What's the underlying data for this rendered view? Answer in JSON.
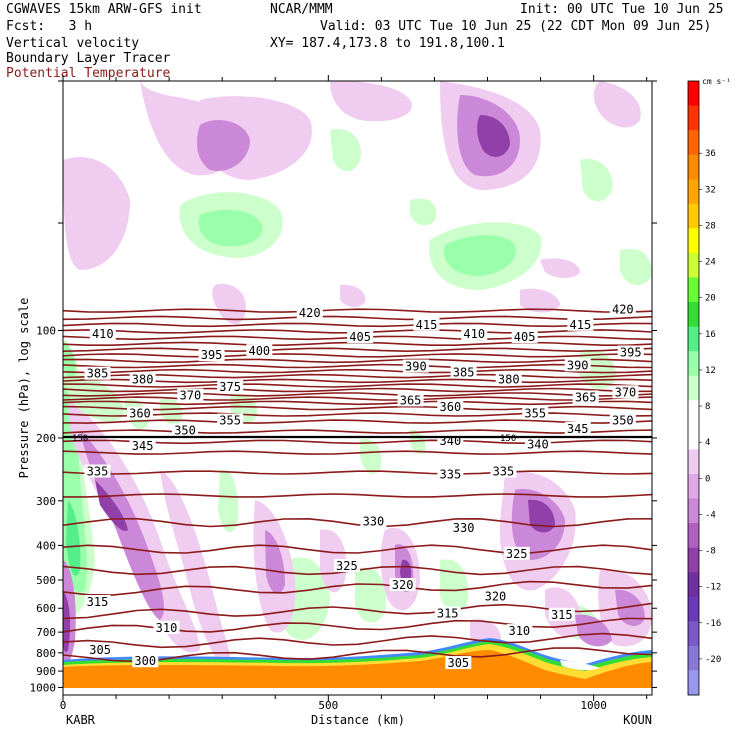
{
  "header": {
    "model": "CGWAVES 15km ARW-GFS init",
    "center": "NCAR/MMM",
    "init": "Init: 00 UTC Tue 10 Jun 25",
    "fcst": "Fcst:   3 h",
    "valid": "Valid: 03 UTC Tue 10 Jun 25 (22 CDT Mon 09 Jun 25)",
    "field1": "Vertical velocity",
    "xy": "XY= 187.4,173.8 to 191.8,100.1",
    "field2": "Boundary Layer Tracer",
    "field3": "Potential Temperature"
  },
  "colors": {
    "theta_contour": "#8b1a1a",
    "title_red": "#8b1a1a",
    "plume_orange": "#ff8c00"
  },
  "chart_data": {
    "type": "cross-section",
    "xlabel": "Distance (km)",
    "ylabel": "Pressure (hPa), log scale",
    "xlim": [
      0,
      1110
    ],
    "ylim": [
      1050,
      20
    ],
    "y_scale": "log",
    "x_ticks": [
      "0",
      "500",
      "1000"
    ],
    "x_tick_values": [
      0,
      500,
      1000
    ],
    "y_ticks": [
      "100",
      "200",
      "300",
      "400",
      "500",
      "600",
      "700",
      "800",
      "900",
      "1000"
    ],
    "y_tick_values": [
      100,
      200,
      300,
      400,
      500,
      600,
      700,
      800,
      900,
      1000
    ],
    "left_endpoint": "KABR",
    "right_endpoint": "KOUN",
    "colorbar": {
      "units": "cm s⁻¹",
      "labels": [
        "36",
        "32",
        "28",
        "24",
        "20",
        "16",
        "12",
        "8",
        "4",
        "0",
        "-4",
        "-8",
        "-12",
        "-16",
        "-20"
      ],
      "colors": [
        "#ff0000",
        "#ff3300",
        "#ff6600",
        "#ff8c00",
        "#ffa500",
        "#ffcc00",
        "#ffff00",
        "#ccff33",
        "#66ff33",
        "#33dd33",
        "#55ee88",
        "#99ffaa",
        "#ccffcc",
        "#ffffff",
        "#ffffff",
        "#f0ccf0",
        "#e0a8e8",
        "#cc88d8",
        "#b060c0",
        "#9040a8",
        "#7030a0",
        "#6a3ab8",
        "#7a5ac8",
        "#8a78d8",
        "#9a98ee"
      ]
    },
    "tropopause_label": "150",
    "theta_labels": [
      {
        "text": "410",
        "x": 75,
        "p": 103
      },
      {
        "text": "420",
        "x": 465,
        "p": 90
      },
      {
        "text": "405",
        "x": 560,
        "p": 105
      },
      {
        "text": "415",
        "x": 685,
        "p": 97
      },
      {
        "text": "410",
        "x": 775,
        "p": 103
      },
      {
        "text": "405",
        "x": 870,
        "p": 105
      },
      {
        "text": "415",
        "x": 975,
        "p": 97
      },
      {
        "text": "420",
        "x": 1055,
        "p": 88
      },
      {
        "text": "385",
        "x": 65,
        "p": 133
      },
      {
        "text": "395",
        "x": 280,
        "p": 118
      },
      {
        "text": "400",
        "x": 370,
        "p": 115
      },
      {
        "text": "390",
        "x": 665,
        "p": 127
      },
      {
        "text": "385",
        "x": 755,
        "p": 132
      },
      {
        "text": "380",
        "x": 840,
        "p": 138
      },
      {
        "text": "390",
        "x": 970,
        "p": 126
      },
      {
        "text": "395",
        "x": 1070,
        "p": 116
      },
      {
        "text": "380",
        "x": 150,
        "p": 138
      },
      {
        "text": "370",
        "x": 240,
        "p": 153
      },
      {
        "text": "375",
        "x": 315,
        "p": 145
      },
      {
        "text": "365",
        "x": 655,
        "p": 158
      },
      {
        "text": "365",
        "x": 985,
        "p": 155
      },
      {
        "text": "370",
        "x": 1060,
        "p": 150
      },
      {
        "text": "360",
        "x": 145,
        "p": 172
      },
      {
        "text": "355",
        "x": 315,
        "p": 180
      },
      {
        "text": "360",
        "x": 730,
        "p": 165
      },
      {
        "text": "355",
        "x": 890,
        "p": 172
      },
      {
        "text": "350",
        "x": 1055,
        "p": 180
      },
      {
        "text": "350",
        "x": 230,
        "p": 192
      },
      {
        "text": "345",
        "x": 150,
        "p": 212
      },
      {
        "text": "340",
        "x": 730,
        "p": 205
      },
      {
        "text": "340",
        "x": 895,
        "p": 210
      },
      {
        "text": "345",
        "x": 970,
        "p": 190
      },
      {
        "text": "335",
        "x": 65,
        "p": 250
      },
      {
        "text": "335",
        "x": 730,
        "p": 255
      },
      {
        "text": "335",
        "x": 830,
        "p": 250
      },
      {
        "text": "330",
        "x": 585,
        "p": 345
      },
      {
        "text": "330",
        "x": 755,
        "p": 360
      },
      {
        "text": "325",
        "x": 535,
        "p": 460
      },
      {
        "text": "325",
        "x": 855,
        "p": 425
      },
      {
        "text": "320",
        "x": 640,
        "p": 520
      },
      {
        "text": "320",
        "x": 815,
        "p": 560
      },
      {
        "text": "315",
        "x": 65,
        "p": 580
      },
      {
        "text": "315",
        "x": 725,
        "p": 625
      },
      {
        "text": "315",
        "x": 940,
        "p": 630
      },
      {
        "text": "310",
        "x": 195,
        "p": 685
      },
      {
        "text": "310",
        "x": 860,
        "p": 700
      },
      {
        "text": "305",
        "x": 70,
        "p": 790
      },
      {
        "text": "305",
        "x": 745,
        "p": 860
      },
      {
        "text": "300",
        "x": 155,
        "p": 850
      }
    ]
  }
}
